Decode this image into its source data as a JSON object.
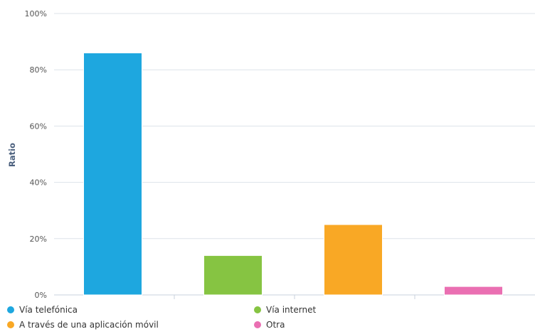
{
  "chart_data": {
    "type": "bar",
    "title": "",
    "xlabel": "",
    "ylabel": "Ratio",
    "ylim": [
      0,
      100
    ],
    "y_ticks": [
      "0%",
      "20%",
      "40%",
      "60%",
      "80%",
      "100%"
    ],
    "grid": true,
    "legend_position": "bottom",
    "categories": [
      "Vía telefónica",
      "Vía internet",
      "A través de una aplicación móvil",
      "Otra"
    ],
    "values": [
      86,
      14,
      25,
      3
    ],
    "unit": "%",
    "colors": [
      "#1ea7df",
      "#86c442",
      "#f9a825",
      "#ea6fb2"
    ],
    "legend": [
      {
        "label": "Vía telefónica",
        "color": "#1ea7df"
      },
      {
        "label": "Vía internet",
        "color": "#86c442"
      },
      {
        "label": "A través de una aplicación móvil",
        "color": "#f9a825"
      },
      {
        "label": "Otra",
        "color": "#ea6fb2"
      }
    ]
  }
}
